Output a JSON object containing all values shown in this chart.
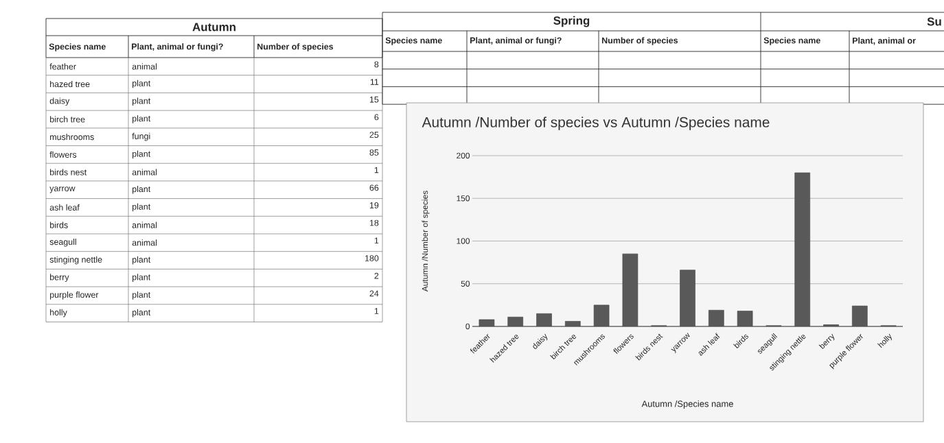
{
  "chart_data": {
    "type": "bar",
    "title": "Autumn /Number of species vs Autumn /Species name",
    "xlabel": "Autumn /Species name",
    "ylabel": "Autumn /Number of species",
    "categories": [
      "feather",
      "hazed tree",
      "daisy",
      "birch tree",
      "mushrooms",
      "flowers",
      "birds nest",
      "yarrow",
      "ash leaf",
      "birds",
      "seagull",
      "stinging nettle",
      "berry",
      "purple flower",
      "holly"
    ],
    "values": [
      8,
      11,
      15,
      6,
      25,
      85,
      1,
      66,
      19,
      18,
      1,
      180,
      2,
      24,
      1
    ],
    "color": "#595959",
    "ylim": [
      0,
      200
    ],
    "yticks": [
      0,
      50,
      100,
      150,
      200
    ],
    "grid": "y",
    "annotations": [
      "Autumn",
      "Species name",
      "Plant, animal or fungi?",
      "Number of species",
      "animal",
      "plant",
      "plant",
      "plant",
      "fungi",
      "plant",
      "animal",
      "plant",
      "plant",
      "animal",
      "animal",
      "plant",
      "plant",
      "plant",
      "plant",
      "8",
      "11",
      "15",
      "6",
      "25",
      "85",
      "1",
      "66",
      "19",
      "18",
      "1",
      "180",
      "2",
      "24",
      "1",
      "Spring",
      "Species name",
      "Plant, animal or fungi?",
      "Number of species",
      "Su",
      "Species name",
      "Plant, animal or"
    ]
  }
}
